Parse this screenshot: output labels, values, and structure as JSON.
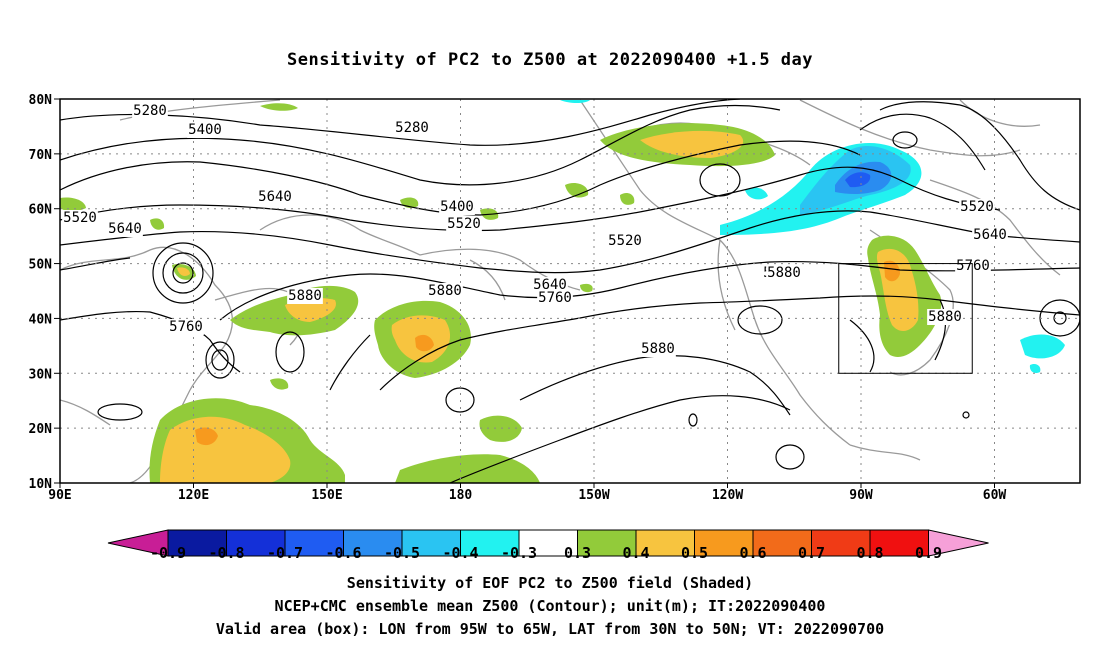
{
  "title": "Sensitivity of PC2 to Z500 at 2022090400 +1.5 day",
  "axes": {
    "lat_labels": [
      "80N",
      "70N",
      "60N",
      "50N",
      "40N",
      "30N",
      "20N",
      "10N"
    ],
    "lon_labels": [
      "90E",
      "120E",
      "150E",
      "180",
      "150W",
      "120W",
      "90W",
      "60W"
    ]
  },
  "contour_labels": [
    "5280",
    "5400",
    "5280",
    "5640",
    "5400",
    "5520",
    "5520",
    "5520",
    "5640",
    "5880",
    "5880",
    "5760",
    "5880",
    "5640",
    "5760",
    "5880",
    "5880",
    "5760",
    "5520",
    "5640",
    "5760",
    "5880"
  ],
  "valid_box": {
    "lon_min": -95,
    "lon_max": -65,
    "lat_min": 30,
    "lat_max": 50
  },
  "colorbar": {
    "levels": [
      "-0.9",
      "-0.8",
      "-0.7",
      "-0.6",
      "-0.5",
      "-0.4",
      "-0.3",
      "0.3",
      "0.4",
      "0.5",
      "0.6",
      "0.7",
      "0.8",
      "0.9"
    ],
    "colors": [
      "#0a1aa0",
      "#1430d8",
      "#1f5cf2",
      "#2a8cf0",
      "#2ac4f2",
      "#22f2f0",
      "#ffffff",
      "#92cb3a",
      "#f7c43f",
      "#f79a1e",
      "#f26b1a",
      "#f03b16",
      "#f01010"
    ],
    "under_color": "#c81e96",
    "over_color": "#f6a0d8"
  },
  "footer": {
    "line1": "Sensitivity of EOF PC2 to Z500 field (Shaded)",
    "line2": "NCEP+CMC ensemble mean Z500 (Contour); unit(m); IT:2022090400",
    "line3": "Valid area (box): LON from 95W to 65W, LAT from 30N to 50N; VT: 2022090700"
  }
}
